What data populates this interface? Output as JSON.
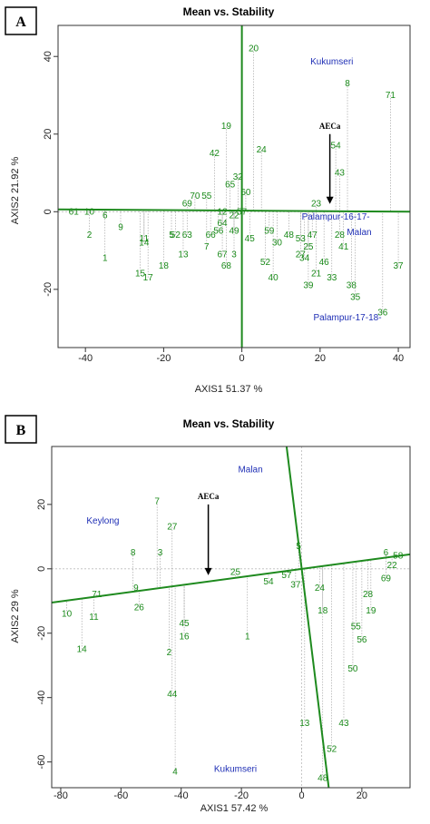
{
  "chart_data": [
    {
      "type": "scatter",
      "panel_label": "A",
      "title": "Mean vs. Stability",
      "xlabel": "AXIS1 51.37 %",
      "ylabel": "AXIS2 21.92 %",
      "xlim": [
        -47,
        43
      ],
      "ylim": [
        -35,
        48
      ],
      "xticks": [
        -40,
        -20,
        0,
        20,
        40
      ],
      "yticks": [
        -20,
        0,
        20,
        40
      ],
      "grid": false,
      "axis_lines": [
        {
          "name": "AEC abscissa",
          "from": [
            -47,
            0.6
          ],
          "to": [
            43,
            0.0
          ]
        },
        {
          "name": "AEC ordinate",
          "from": [
            0,
            48
          ],
          "to": [
            0,
            -35
          ]
        }
      ],
      "aec_arrow": {
        "label": "AECa",
        "from": [
          22.5,
          20
        ],
        "to": [
          22.5,
          2
        ]
      },
      "environments": [
        {
          "label": "Kukumseri",
          "x": 23,
          "y": 38
        },
        {
          "label": "Palampur-16-17-",
          "x": 24,
          "y": -2
        },
        {
          "label": "Malan",
          "x": 30,
          "y": -6
        },
        {
          "label": "Palampur-17-18-",
          "x": 27,
          "y": -28
        }
      ],
      "points": [
        {
          "label": "20",
          "x": 3,
          "y": 42
        },
        {
          "label": "8",
          "x": 27,
          "y": 33
        },
        {
          "label": "71",
          "x": 38,
          "y": 30
        },
        {
          "label": "19",
          "x": -4,
          "y": 22
        },
        {
          "label": "42",
          "x": -7,
          "y": 15
        },
        {
          "label": "24",
          "x": 5,
          "y": 16
        },
        {
          "label": "54",
          "x": 24,
          "y": 17
        },
        {
          "label": "43",
          "x": 25,
          "y": 10
        },
        {
          "label": "32",
          "x": -1,
          "y": 9
        },
        {
          "label": "65",
          "x": -3,
          "y": 7
        },
        {
          "label": "60",
          "x": 1,
          "y": 5
        },
        {
          "label": "70",
          "x": -12,
          "y": 4
        },
        {
          "label": "55",
          "x": -9,
          "y": 4
        },
        {
          "label": "69",
          "x": -14,
          "y": 2
        },
        {
          "label": "23",
          "x": 19,
          "y": 2
        },
        {
          "label": "61",
          "x": -43,
          "y": 0
        },
        {
          "label": "10",
          "x": -39,
          "y": 0
        },
        {
          "label": "6",
          "x": -35,
          "y": -1
        },
        {
          "label": "9",
          "x": -31,
          "y": -4
        },
        {
          "label": "2",
          "x": -39,
          "y": -6
        },
        {
          "label": "11",
          "x": -25,
          "y": -7
        },
        {
          "label": "14",
          "x": -25,
          "y": -8
        },
        {
          "label": "5",
          "x": -18,
          "y": -6
        },
        {
          "label": "52",
          "x": -17,
          "y": -6
        },
        {
          "label": "63",
          "x": -14,
          "y": -6
        },
        {
          "label": "1",
          "x": -35,
          "y": -12
        },
        {
          "label": "13",
          "x": -15,
          "y": -11
        },
        {
          "label": "18",
          "x": -20,
          "y": -14
        },
        {
          "label": "15",
          "x": -26,
          "y": -16
        },
        {
          "label": "17",
          "x": -24,
          "y": -17
        },
        {
          "label": "12",
          "x": -5,
          "y": 0
        },
        {
          "label": "64",
          "x": -5,
          "y": -3
        },
        {
          "label": "22",
          "x": -2,
          "y": -1
        },
        {
          "label": "57",
          "x": 0,
          "y": 0
        },
        {
          "label": "66",
          "x": -8,
          "y": -6
        },
        {
          "label": "56",
          "x": -6,
          "y": -5
        },
        {
          "label": "49",
          "x": -2,
          "y": -5
        },
        {
          "label": "7",
          "x": -9,
          "y": -9
        },
        {
          "label": "3",
          "x": -2,
          "y": -11
        },
        {
          "label": "67",
          "x": -5,
          "y": -11
        },
        {
          "label": "68",
          "x": -4,
          "y": -14
        },
        {
          "label": "45",
          "x": 2,
          "y": -7
        },
        {
          "label": "59",
          "x": 7,
          "y": -5
        },
        {
          "label": "30",
          "x": 9,
          "y": -8
        },
        {
          "label": "48",
          "x": 12,
          "y": -6
        },
        {
          "label": "53",
          "x": 15,
          "y": -7
        },
        {
          "label": "47",
          "x": 18,
          "y": -6
        },
        {
          "label": "25",
          "x": 17,
          "y": -9
        },
        {
          "label": "27",
          "x": 15,
          "y": -11
        },
        {
          "label": "34",
          "x": 16,
          "y": -12
        },
        {
          "label": "52",
          "x": 6,
          "y": -13
        },
        {
          "label": "40",
          "x": 8,
          "y": -17
        },
        {
          "label": "28",
          "x": 25,
          "y": -6
        },
        {
          "label": "41",
          "x": 26,
          "y": -9
        },
        {
          "label": "46",
          "x": 21,
          "y": -13
        },
        {
          "label": "21",
          "x": 19,
          "y": -16
        },
        {
          "label": "33",
          "x": 23,
          "y": -17
        },
        {
          "label": "39",
          "x": 17,
          "y": -19
        },
        {
          "label": "38",
          "x": 28,
          "y": -19
        },
        {
          "label": "35",
          "x": 29,
          "y": -22
        },
        {
          "label": "36",
          "x": 36,
          "y": -26
        },
        {
          "label": "37",
          "x": 40,
          "y": -14
        }
      ]
    },
    {
      "type": "scatter",
      "panel_label": "B",
      "title": "Mean vs. Stability",
      "xlabel": "AXIS1 57.42 %",
      "ylabel": "AXIS2 29 %",
      "xlim": [
        -83,
        36
      ],
      "ylim": [
        -68,
        38
      ],
      "xticks": [
        -80,
        -60,
        -40,
        -20,
        0,
        20
      ],
      "yticks": [
        -60,
        -40,
        -20,
        0,
        20
      ],
      "grid": false,
      "axis_lines": [
        {
          "name": "AEC abscissa",
          "from": [
            -83,
            -10.5
          ],
          "to": [
            36,
            4.5
          ]
        },
        {
          "name": "AEC ordinate",
          "from": [
            -5,
            38
          ],
          "to": [
            9,
            -68
          ]
        }
      ],
      "aec_arrow": {
        "label": "AECa",
        "from": [
          -31,
          20
        ],
        "to": [
          -31,
          -2
        ]
      },
      "environments": [
        {
          "label": "Malan",
          "x": -17,
          "y": 30
        },
        {
          "label": "Keylong",
          "x": -66,
          "y": 14
        },
        {
          "label": "Kukumseri",
          "x": -22,
          "y": -63
        }
      ],
      "points": [
        {
          "label": "7",
          "x": -48,
          "y": 21
        },
        {
          "label": "27",
          "x": -43,
          "y": 13
        },
        {
          "label": "8",
          "x": -56,
          "y": 5
        },
        {
          "label": "3",
          "x": -47,
          "y": 5
        },
        {
          "label": "25",
          "x": -22,
          "y": -1
        },
        {
          "label": "5",
          "x": -1,
          "y": 7
        },
        {
          "label": "9",
          "x": -55,
          "y": -6
        },
        {
          "label": "26",
          "x": -54,
          "y": -12
        },
        {
          "label": "71",
          "x": -68,
          "y": -8
        },
        {
          "label": "11",
          "x": -69,
          "y": -15
        },
        {
          "label": "10",
          "x": -78,
          "y": -14
        },
        {
          "label": "14",
          "x": -73,
          "y": -25
        },
        {
          "label": "45",
          "x": -39,
          "y": -17
        },
        {
          "label": "16",
          "x": -39,
          "y": -21
        },
        {
          "label": "2",
          "x": -44,
          "y": -26
        },
        {
          "label": "1",
          "x": -18,
          "y": -21
        },
        {
          "label": "44",
          "x": -43,
          "y": -39
        },
        {
          "label": "4",
          "x": -42,
          "y": -63
        },
        {
          "label": "54",
          "x": -11,
          "y": -4
        },
        {
          "label": "57",
          "x": -5,
          "y": -2
        },
        {
          "label": "37",
          "x": -2,
          "y": -5
        },
        {
          "label": "24",
          "x": 6,
          "y": -6
        },
        {
          "label": "18",
          "x": 7,
          "y": -13
        },
        {
          "label": "13",
          "x": 1,
          "y": -48
        },
        {
          "label": "43",
          "x": 14,
          "y": -48
        },
        {
          "label": "52",
          "x": 10,
          "y": -56
        },
        {
          "label": "48",
          "x": 7,
          "y": -65
        },
        {
          "label": "6",
          "x": 28,
          "y": 5
        },
        {
          "label": "58",
          "x": 32,
          "y": 4
        },
        {
          "label": "22",
          "x": 30,
          "y": 1
        },
        {
          "label": "69",
          "x": 28,
          "y": -3
        },
        {
          "label": "28",
          "x": 22,
          "y": -8
        },
        {
          "label": "19",
          "x": 23,
          "y": -13
        },
        {
          "label": "55",
          "x": 18,
          "y": -18
        },
        {
          "label": "56",
          "x": 20,
          "y": -22
        },
        {
          "label": "50",
          "x": 17,
          "y": -31
        }
      ]
    }
  ]
}
